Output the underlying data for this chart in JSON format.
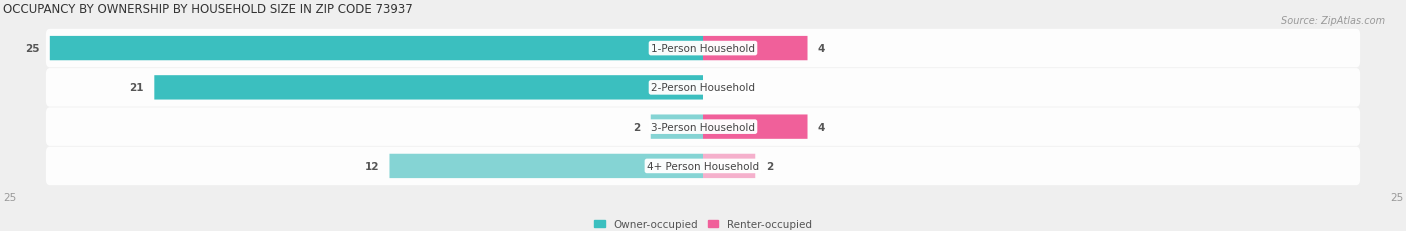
{
  "title": "OCCUPANCY BY OWNERSHIP BY HOUSEHOLD SIZE IN ZIP CODE 73937",
  "source": "Source: ZipAtlas.com",
  "categories": [
    "1-Person Household",
    "2-Person Household",
    "3-Person Household",
    "4+ Person Household"
  ],
  "owner_values": [
    25,
    21,
    2,
    12
  ],
  "renter_values": [
    4,
    0,
    4,
    2
  ],
  "owner_color": "#3bbfbf",
  "owner_color_light": "#85d4d4",
  "renter_color": "#f0609a",
  "renter_color_light": "#f5b0cc",
  "bg_color": "#efefef",
  "row_bg_color": "#e4e4e4",
  "title_fontsize": 8.5,
  "source_fontsize": 7,
  "label_fontsize": 7.5,
  "value_fontsize": 7.5,
  "axis_max": 25,
  "legend_owner": "Owner-occupied",
  "legend_renter": "Renter-occupied"
}
